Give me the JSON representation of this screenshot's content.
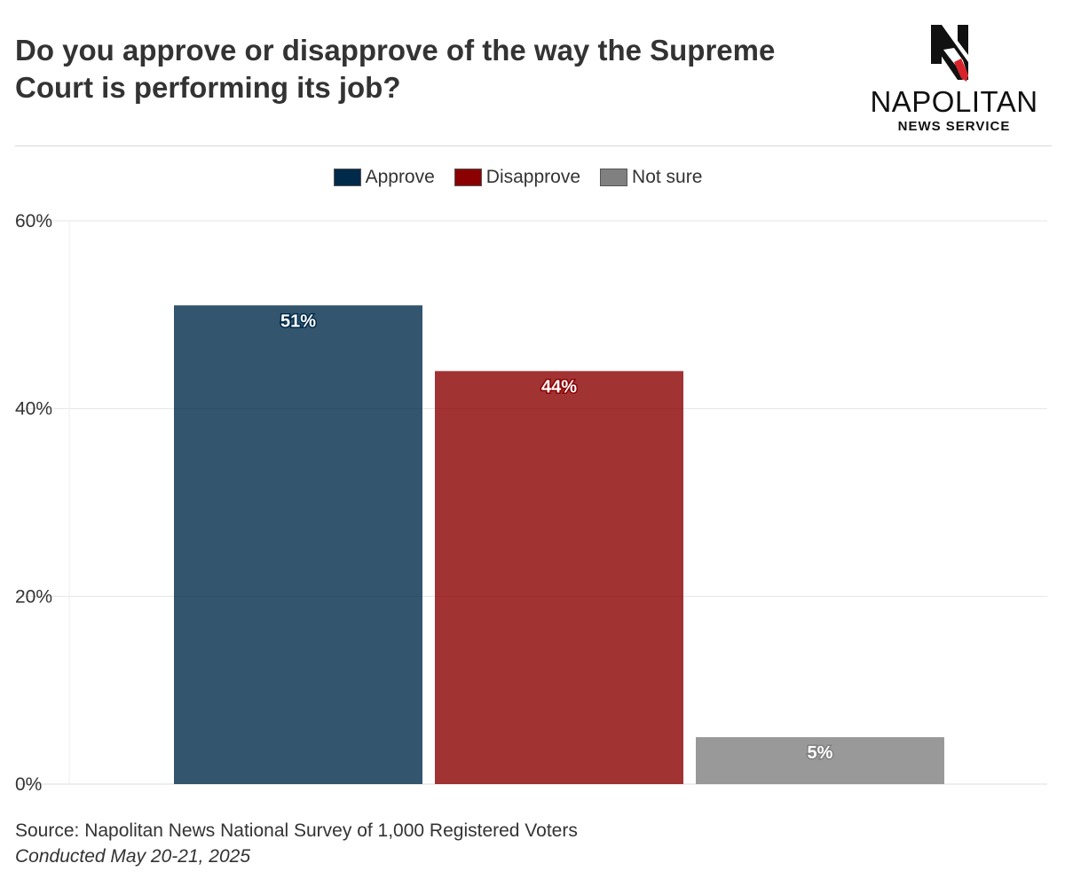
{
  "header": {
    "title": "Do you approve or disapprove of the way the Supreme Court is performing its job?"
  },
  "logo": {
    "name": "NAPOLITAN",
    "sub": "NEWS SERVICE"
  },
  "footer": {
    "source": "Source: Napolitan News National Survey of 1,000 Registered Voters",
    "conducted": "Conducted May 20-21, 2025"
  },
  "colors": {
    "approve": "#002a4a",
    "disapprove": "#8b0000",
    "not_sure": "#808080",
    "grid": "#e6e6e6",
    "text": "#333333"
  },
  "chart_data": {
    "type": "bar",
    "title": "Do you approve or disapprove of the way the Supreme Court is performing its job?",
    "xlabel": "",
    "ylabel": "",
    "ylim": [
      0,
      60
    ],
    "yticks": [
      0,
      20,
      40,
      60
    ],
    "ytick_labels": [
      "0%",
      "20%",
      "40%",
      "60%"
    ],
    "grid": true,
    "legend_position": "top-center",
    "series": [
      {
        "name": "Approve",
        "values": [
          51
        ],
        "label": "51%",
        "color": "#002a4a"
      },
      {
        "name": "Disapprove",
        "values": [
          44
        ],
        "label": "44%",
        "color": "#8b0000"
      },
      {
        "name": "Not sure",
        "values": [
          5
        ],
        "label": "5%",
        "color": "#808080"
      }
    ]
  }
}
